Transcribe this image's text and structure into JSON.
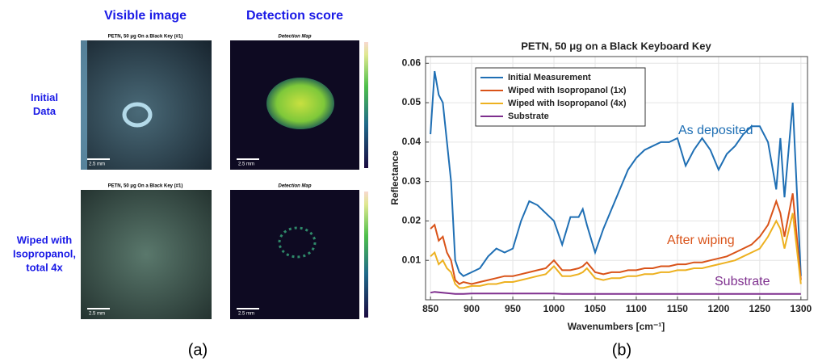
{
  "figure": {
    "column_headers": [
      "Visible image",
      "Detection score"
    ],
    "row_labels": [
      [
        "Initial",
        "Data"
      ],
      [
        "Wiped with",
        "Isopropanol,",
        "total 4x"
      ]
    ],
    "panels": [
      {
        "title": "PETN, 50 μg On a Black Key (#1)",
        "scale": "2.5 mm"
      },
      {
        "title": "Detection Map",
        "scale": "2.5 mm"
      },
      {
        "title": "PETN, 50 μg On a Black Key (#1)",
        "scale": "2.5 mm"
      },
      {
        "title": "Detection Map",
        "scale": "2.5 mm"
      }
    ],
    "captions": [
      "(a)",
      "(b)"
    ]
  },
  "chart_data": {
    "type": "line",
    "title": "PETN, 50 μg on a Black Keyboard Key",
    "x_label": "Wavenumbers [cm⁻¹]",
    "y_label": "Reflectance",
    "x": [
      850,
      855,
      860,
      865,
      870,
      875,
      880,
      885,
      890,
      900,
      910,
      920,
      930,
      940,
      950,
      960,
      970,
      980,
      990,
      1000,
      1010,
      1020,
      1030,
      1035,
      1040,
      1050,
      1060,
      1070,
      1080,
      1090,
      1100,
      1110,
      1120,
      1130,
      1140,
      1150,
      1160,
      1170,
      1180,
      1190,
      1200,
      1210,
      1220,
      1230,
      1240,
      1250,
      1260,
      1270,
      1275,
      1280,
      1290,
      1300
    ],
    "series": [
      {
        "name": "Initial Measurement",
        "color": "#1f6fb4",
        "values": [
          0.042,
          0.058,
          0.052,
          0.05,
          0.04,
          0.03,
          0.01,
          0.007,
          0.006,
          0.007,
          0.008,
          0.011,
          0.013,
          0.012,
          0.013,
          0.02,
          0.025,
          0.024,
          0.022,
          0.02,
          0.014,
          0.021,
          0.021,
          0.023,
          0.019,
          0.012,
          0.018,
          0.023,
          0.028,
          0.033,
          0.036,
          0.038,
          0.039,
          0.04,
          0.04,
          0.041,
          0.034,
          0.038,
          0.041,
          0.038,
          0.033,
          0.037,
          0.039,
          0.042,
          0.044,
          0.044,
          0.04,
          0.028,
          0.041,
          0.026,
          0.05,
          0.006
        ]
      },
      {
        "name": "Wiped with Isopropanol (1x)",
        "color": "#d95319",
        "values": [
          0.018,
          0.019,
          0.015,
          0.016,
          0.012,
          0.01,
          0.005,
          0.004,
          0.0045,
          0.004,
          0.0045,
          0.005,
          0.0055,
          0.006,
          0.006,
          0.0065,
          0.007,
          0.0075,
          0.008,
          0.01,
          0.0075,
          0.0075,
          0.008,
          0.0085,
          0.0095,
          0.007,
          0.0065,
          0.007,
          0.007,
          0.0075,
          0.0075,
          0.008,
          0.008,
          0.0085,
          0.0085,
          0.009,
          0.009,
          0.0095,
          0.0095,
          0.01,
          0.0105,
          0.011,
          0.012,
          0.013,
          0.014,
          0.016,
          0.019,
          0.025,
          0.022,
          0.016,
          0.027,
          0.005
        ]
      },
      {
        "name": "Wiped with Isopropanol (4x)",
        "color": "#edb120",
        "values": [
          0.011,
          0.012,
          0.009,
          0.01,
          0.008,
          0.007,
          0.004,
          0.003,
          0.003,
          0.0035,
          0.0035,
          0.004,
          0.004,
          0.0045,
          0.0045,
          0.005,
          0.0055,
          0.006,
          0.0065,
          0.0085,
          0.006,
          0.006,
          0.0065,
          0.007,
          0.008,
          0.0055,
          0.005,
          0.0055,
          0.0055,
          0.006,
          0.006,
          0.0065,
          0.0065,
          0.007,
          0.007,
          0.0075,
          0.0075,
          0.008,
          0.008,
          0.0085,
          0.009,
          0.0095,
          0.01,
          0.011,
          0.012,
          0.013,
          0.016,
          0.02,
          0.018,
          0.013,
          0.022,
          0.004
        ]
      },
      {
        "name": "Substrate",
        "color": "#7e2f8e",
        "values": [
          0.0018,
          0.002,
          0.0019,
          0.0018,
          0.0017,
          0.0016,
          0.0015,
          0.0015,
          0.0015,
          0.0016,
          0.0016,
          0.0016,
          0.0016,
          0.0016,
          0.0016,
          0.0016,
          0.0016,
          0.0016,
          0.0016,
          0.0016,
          0.0015,
          0.0015,
          0.0015,
          0.0015,
          0.0015,
          0.0015,
          0.0015,
          0.0015,
          0.0015,
          0.0015,
          0.0015,
          0.0015,
          0.0015,
          0.0015,
          0.0015,
          0.0015,
          0.0015,
          0.0015,
          0.0015,
          0.0015,
          0.0015,
          0.0015,
          0.0015,
          0.0015,
          0.0015,
          0.0015,
          0.0015,
          0.0015,
          0.0015,
          0.0015,
          0.0015,
          0.0015
        ]
      }
    ],
    "annotations": [
      {
        "text": "As deposited",
        "color": "#1f6fb4"
      },
      {
        "text": "After wiping",
        "color": "#d95319"
      },
      {
        "text": "Substrate",
        "color": "#7e2f8e"
      }
    ],
    "xlim": [
      844,
      1308
    ],
    "xticks": [
      850,
      900,
      950,
      1000,
      1050,
      1100,
      1150,
      1200,
      1250,
      1300
    ],
    "ylim": [
      0,
      0.0617
    ],
    "yticks": [
      0.01,
      0.02,
      0.03,
      0.04,
      0.05,
      0.06
    ],
    "grid": true,
    "legend": "upper left"
  }
}
